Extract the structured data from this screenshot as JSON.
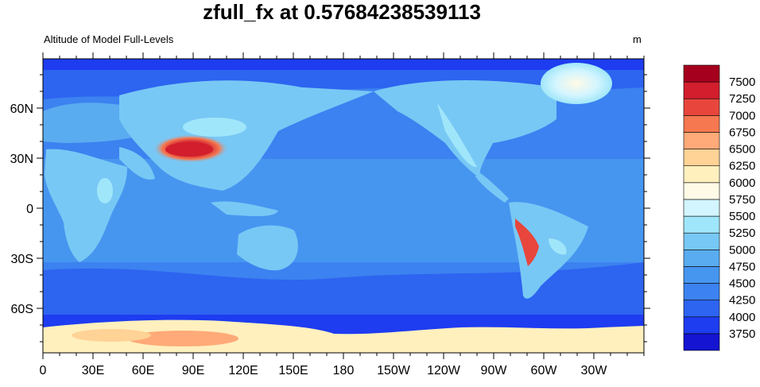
{
  "plot": {
    "title": "zfull_fx at 0.57684238539113",
    "left_string": "Altitude of Model Full-Levels",
    "right_string": "m"
  },
  "chart_data": {
    "type": "heatmap",
    "x_ticks": [
      "0",
      "30E",
      "60E",
      "90E",
      "120E",
      "150E",
      "180",
      "150W",
      "120W",
      "90W",
      "60W",
      "30W"
    ],
    "y_ticks": [
      "60N",
      "30N",
      "0",
      "30S",
      "60S"
    ],
    "colorbar": {
      "levels": [
        "3750",
        "4000",
        "4250",
        "4500",
        "4750",
        "5000",
        "5250",
        "5500",
        "5750",
        "6000",
        "6250",
        "6500",
        "6750",
        "7000",
        "7250",
        "7500"
      ],
      "colors": [
        "#1414d2",
        "#1e3cf0",
        "#2d64f0",
        "#3c82f0",
        "#4696f0",
        "#5aacf0",
        "#78c8f5",
        "#a0e6fa",
        "#d2f5ff",
        "#fffae6",
        "#fff0be",
        "#ffd296",
        "#ffaa78",
        "#f57850",
        "#e8463c",
        "#d21e2d",
        "#a5001e"
      ]
    },
    "colors": {
      "ocean": "#3c82f0",
      "south_ocean": "#2d64f0",
      "polar_ocean": "#1e3cf0",
      "land": "#78c8f5",
      "tibet_high": "#d21e2d",
      "andes_high": "#e8463c",
      "antarctica": "#fff0be"
    }
  }
}
